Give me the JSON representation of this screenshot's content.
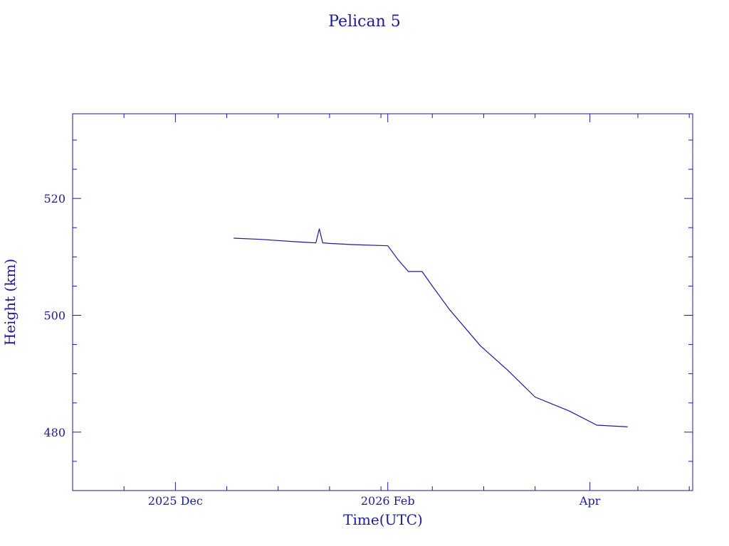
{
  "chart_data": {
    "type": "line",
    "title": "Pelican 5",
    "xlabel": "Time(UTC)",
    "ylabel": "Height (km)",
    "x_tick_labels": [
      {
        "date": "2025-12-01",
        "label": "2025 Dec"
      },
      {
        "date": "2026-02-01",
        "label": "2026 Feb"
      },
      {
        "date": "2026-04-01",
        "label": "Apr"
      }
    ],
    "y_tick_labels": [
      {
        "value": 480,
        "label": "480"
      },
      {
        "value": 500,
        "label": "500"
      },
      {
        "value": 520,
        "label": "520"
      }
    ],
    "xlim": [
      "2025-11-01",
      "2026-05-01"
    ],
    "ylim": [
      470,
      534.5
    ],
    "grid": false,
    "x_minor_step_days": 15,
    "y_minor_step": 5,
    "colors": {
      "line": "#1a1a9c",
      "text": "#1a1a9c",
      "background": "#ffffff"
    },
    "series": [
      {
        "x": [
          "2025-12-18",
          "2025-12-26",
          "2026-01-05",
          "2026-01-11",
          "2026-01-12",
          "2026-01-13",
          "2026-01-15",
          "2026-01-22",
          "2026-02-01",
          "2026-02-04",
          "2026-02-07",
          "2026-02-11",
          "2026-02-14",
          "2026-02-19",
          "2026-02-28",
          "2026-03-08",
          "2026-03-16",
          "2026-03-26",
          "2026-04-03",
          "2026-04-12"
        ],
        "y": [
          513.2,
          513.0,
          512.6,
          512.4,
          514.8,
          512.4,
          512.3,
          512.1,
          511.9,
          509.5,
          507.5,
          507.5,
          505.0,
          501.0,
          494.8,
          490.6,
          486.0,
          483.6,
          481.2,
          480.9
        ]
      }
    ]
  }
}
